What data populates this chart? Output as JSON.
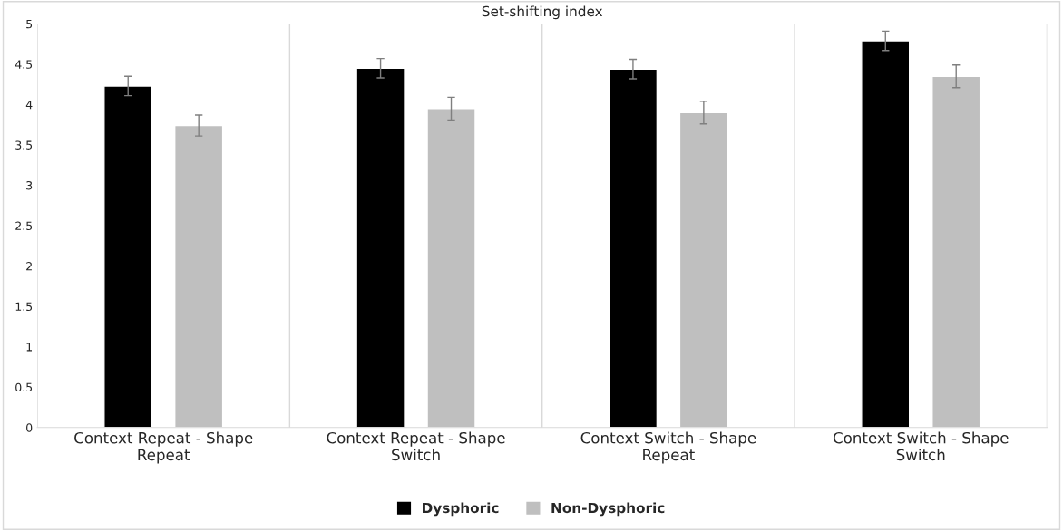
{
  "chart_data": {
    "type": "bar",
    "title": "Set-shifting index",
    "categories": [
      "Context Repeat - Shape Repeat",
      "Context Repeat - Shape Switch",
      "Context Switch - Shape Repeat",
      "Context Switch - Shape Switch"
    ],
    "series": [
      {
        "name": "Dysphoric",
        "color": "#000000",
        "values": [
          4.23,
          4.45,
          4.44,
          4.79
        ],
        "errors": [
          0.12,
          0.12,
          0.12,
          0.12
        ]
      },
      {
        "name": "Non-Dysphoric",
        "color": "#bfbfbf",
        "values": [
          3.74,
          3.95,
          3.9,
          4.35
        ],
        "errors": [
          0.13,
          0.14,
          0.14,
          0.14
        ]
      }
    ],
    "ylim": [
      0,
      5
    ],
    "yticks": [
      0,
      0.5,
      1,
      1.5,
      2,
      2.5,
      3,
      3.5,
      4,
      4.5,
      5
    ],
    "grid": "x",
    "legend": "bottom"
  }
}
